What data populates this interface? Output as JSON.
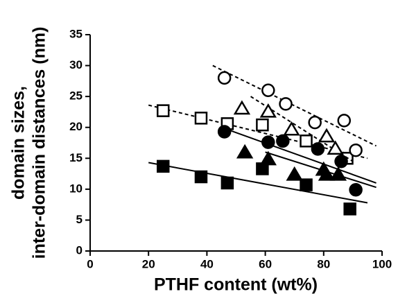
{
  "chart_data": {
    "type": "scatter",
    "xlabel": "PTHF content (wt%)",
    "ylabel": [
      "domain sizes,",
      "inter-domain distances (nm)"
    ],
    "xlim": [
      0,
      100
    ],
    "xticks": [
      0,
      20,
      40,
      60,
      80,
      100
    ],
    "ylim": [
      0,
      35
    ],
    "yticks": [
      0,
      5,
      10,
      15,
      20,
      25,
      30,
      35
    ],
    "color": "#000000",
    "series": [
      {
        "marker": "square",
        "filled": true,
        "x": [
          25,
          38,
          47,
          59,
          74,
          89
        ],
        "values": [
          13.7,
          12,
          11,
          13.3,
          10.7,
          6.8
        ],
        "fit": {
          "dashed": false,
          "x": [
            20,
            95
          ],
          "values": [
            14.3,
            7.8
          ]
        }
      },
      {
        "marker": "square",
        "filled": false,
        "x": [
          25,
          38,
          47,
          59,
          74,
          88
        ],
        "values": [
          22.7,
          21.5,
          20.6,
          20.4,
          17.8,
          15
        ],
        "fit": {
          "dashed": true,
          "x": [
            20,
            95
          ],
          "values": [
            23.6,
            15
          ]
        }
      },
      {
        "marker": "circle",
        "filled": true,
        "x": [
          46,
          61,
          66,
          78,
          86,
          91
        ],
        "values": [
          19.3,
          17.6,
          17.8,
          16.5,
          14.5,
          9.9
        ],
        "fit": {
          "dashed": false,
          "x": [
            45,
            98
          ],
          "values": [
            20,
            11
          ]
        }
      },
      {
        "marker": "triangle",
        "filled": false,
        "x": [
          52,
          61,
          69,
          81,
          84
        ],
        "values": [
          23,
          22.5,
          19.6,
          18.5,
          16.5
        ],
        "fit": {
          "dashed": true,
          "x": [
            55,
            90
          ],
          "values": [
            25,
            14.5
          ]
        }
      },
      {
        "marker": "triangle",
        "filled": true,
        "x": [
          53,
          61,
          70,
          80,
          81,
          85
        ],
        "values": [
          15.9,
          14.8,
          12.3,
          13.1,
          12.3,
          12.3
        ],
        "fit": {
          "dashed": false,
          "x": [
            60,
            98
          ],
          "values": [
            16,
            10.3
          ]
        }
      },
      {
        "marker": "circle",
        "filled": false,
        "x": [
          46,
          61,
          67,
          77,
          87,
          91
        ],
        "values": [
          28,
          26,
          23.8,
          20.8,
          21.1,
          16.3
        ],
        "fit": {
          "dashed": true,
          "x": [
            42,
            98
          ],
          "values": [
            30,
            17
          ]
        }
      }
    ]
  }
}
